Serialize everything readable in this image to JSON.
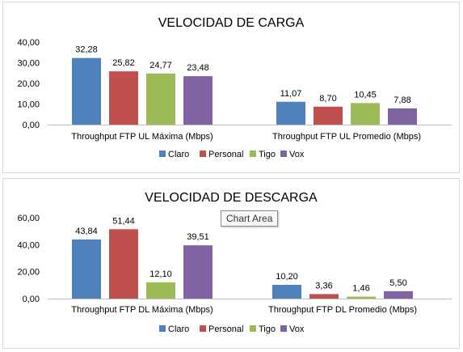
{
  "colors": {
    "Claro": "#4f81bd",
    "Personal": "#c0504d",
    "Tigo": "#9bbb59",
    "Vox": "#8064a2"
  },
  "tooltip": {
    "text": "Chart Area"
  },
  "chart_data": [
    {
      "type": "bar",
      "title": "VELOCIDAD DE CARGA",
      "categories": [
        "Throughput FTP UL Máxima (Mbps)",
        "Throughput FTP UL Promedio (Mbps)"
      ],
      "series": [
        {
          "name": "Claro",
          "values": [
            32.28,
            11.07
          ],
          "labels": [
            "32,28",
            "11,07"
          ]
        },
        {
          "name": "Personal",
          "values": [
            25.82,
            8.7
          ],
          "labels": [
            "25,82",
            "8,70"
          ]
        },
        {
          "name": "Tigo",
          "values": [
            24.77,
            10.45
          ],
          "labels": [
            "24,77",
            "10,45"
          ]
        },
        {
          "name": "Vox",
          "values": [
            23.48,
            7.88
          ],
          "labels": [
            "23,48",
            "7,88"
          ]
        }
      ],
      "ylim": [
        0,
        40
      ],
      "yticks": [
        "0,00",
        "10,00",
        "20,00",
        "30,00",
        "40,00"
      ],
      "legend": "bottom",
      "grid": false
    },
    {
      "type": "bar",
      "title": "VELOCIDAD DE DESCARGA",
      "categories": [
        "Throughput FTP DL Máxima (Mbps)",
        "Throughput FTP DL Promedio (Mbps)"
      ],
      "series": [
        {
          "name": "Claro",
          "values": [
            43.84,
            10.2
          ],
          "labels": [
            "43,84",
            "10,20"
          ]
        },
        {
          "name": "Personal",
          "values": [
            51.44,
            3.36
          ],
          "labels": [
            "51,44",
            "3,36"
          ]
        },
        {
          "name": "Tigo",
          "values": [
            12.1,
            1.46
          ],
          "labels": [
            "12,10",
            "1,46"
          ]
        },
        {
          "name": "Vox",
          "values": [
            39.51,
            5.5
          ],
          "labels": [
            "39,51",
            "5,50"
          ]
        }
      ],
      "ylim": [
        0,
        60
      ],
      "yticks": [
        "0,00",
        "20,00",
        "40,00",
        "60,00"
      ],
      "legend": "bottom",
      "grid": false
    }
  ]
}
